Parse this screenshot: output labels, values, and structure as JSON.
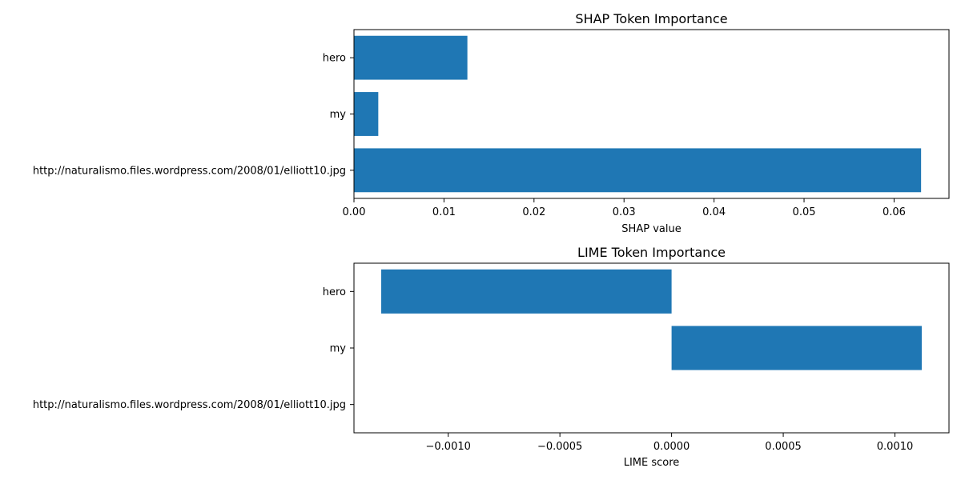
{
  "chart_data": [
    {
      "type": "bar",
      "orientation": "horizontal",
      "title": "SHAP Token Importance",
      "xlabel": "SHAP value",
      "ylabel": "",
      "categories": [
        "hero",
        "my",
        "http://naturalismo.files.wordpress.com/2008/01/elliott10.jpg"
      ],
      "values": [
        0.0126,
        0.0027,
        0.063
      ],
      "xlim": [
        0,
        0.0661
      ],
      "xticks": [
        0,
        0.01,
        0.02,
        0.03,
        0.04,
        0.05,
        0.06
      ],
      "xtick_labels": [
        "0.00",
        "0.01",
        "0.02",
        "0.03",
        "0.04",
        "0.05",
        "0.06"
      ],
      "grid": false,
      "color": "#1f77b4"
    },
    {
      "type": "bar",
      "orientation": "horizontal",
      "title": "LIME Token Importance",
      "xlabel": "LIME score",
      "ylabel": "",
      "categories": [
        "hero",
        "my",
        "http://naturalismo.files.wordpress.com/2008/01/elliott10.jpg"
      ],
      "values": [
        -0.0013,
        0.00112,
        0
      ],
      "xlim": [
        -0.001422,
        0.001242
      ],
      "xticks": [
        -0.001,
        -0.0005,
        0,
        0.0005,
        0.001
      ],
      "xtick_labels": [
        "−0.0010",
        "−0.0005",
        "0.0000",
        "0.0005",
        "0.0010"
      ],
      "grid": false,
      "color": "#1f77b4"
    }
  ]
}
